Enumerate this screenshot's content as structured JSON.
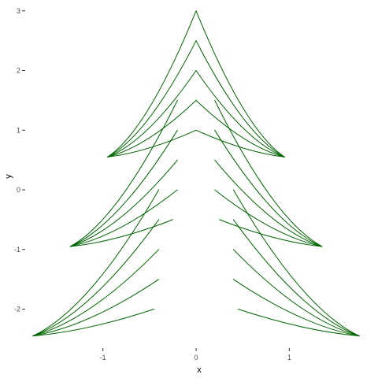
{
  "chart_data": {
    "type": "line",
    "title": "",
    "xlabel": "x",
    "ylabel": "y",
    "xlim": [
      -1.85,
      1.85
    ],
    "ylim": [
      -2.6,
      3.05
    ],
    "xticks": [
      -1,
      0,
      1
    ],
    "yticks": [
      -2,
      -1,
      0,
      1,
      2,
      3
    ],
    "grid": false,
    "legend": "none",
    "line_color": "#006400",
    "background": "#ffffff",
    "series": [
      {
        "points": [
          [
            -0.95,
            0.55
          ],
          [
            0,
            3.0
          ]
        ]
      },
      {
        "points": [
          [
            0.95,
            0.55
          ],
          [
            0,
            3.0
          ]
        ]
      },
      {
        "points": [
          [
            -0.95,
            0.55
          ],
          [
            0,
            2.5
          ]
        ]
      },
      {
        "points": [
          [
            0.95,
            0.55
          ],
          [
            0,
            2.5
          ]
        ]
      },
      {
        "points": [
          [
            -0.95,
            0.55
          ],
          [
            0,
            2.0
          ]
        ]
      },
      {
        "points": [
          [
            0.95,
            0.55
          ],
          [
            0,
            2.0
          ]
        ]
      },
      {
        "points": [
          [
            -0.95,
            0.55
          ],
          [
            0,
            1.5
          ]
        ]
      },
      {
        "points": [
          [
            0.95,
            0.55
          ],
          [
            0,
            1.5
          ]
        ]
      },
      {
        "points": [
          [
            -0.95,
            0.55
          ],
          [
            0,
            1.0
          ]
        ]
      },
      {
        "points": [
          [
            0.95,
            0.55
          ],
          [
            0,
            1.0
          ]
        ]
      },
      {
        "points": [
          [
            -1.35,
            -0.95
          ],
          [
            -0.2,
            1.5
          ]
        ]
      },
      {
        "points": [
          [
            1.35,
            -0.95
          ],
          [
            0.2,
            1.5
          ]
        ]
      },
      {
        "points": [
          [
            -1.35,
            -0.95
          ],
          [
            -0.2,
            1.0
          ]
        ]
      },
      {
        "points": [
          [
            1.35,
            -0.95
          ],
          [
            0.2,
            1.0
          ]
        ]
      },
      {
        "points": [
          [
            -1.35,
            -0.95
          ],
          [
            -0.2,
            0.5
          ]
        ]
      },
      {
        "points": [
          [
            1.35,
            -0.95
          ],
          [
            0.2,
            0.5
          ]
        ]
      },
      {
        "points": [
          [
            -1.35,
            -0.95
          ],
          [
            -0.2,
            0.0
          ]
        ]
      },
      {
        "points": [
          [
            1.35,
            -0.95
          ],
          [
            0.2,
            0.0
          ]
        ]
      },
      {
        "points": [
          [
            -1.35,
            -0.95
          ],
          [
            -0.25,
            -0.5
          ]
        ]
      },
      {
        "points": [
          [
            1.35,
            -0.95
          ],
          [
            0.25,
            -0.5
          ]
        ]
      },
      {
        "points": [
          [
            -1.75,
            -2.45
          ],
          [
            -0.4,
            0.0
          ]
        ]
      },
      {
        "points": [
          [
            1.75,
            -2.45
          ],
          [
            0.4,
            0.0
          ]
        ]
      },
      {
        "points": [
          [
            -1.75,
            -2.45
          ],
          [
            -0.4,
            -0.5
          ]
        ]
      },
      {
        "points": [
          [
            1.75,
            -2.45
          ],
          [
            0.4,
            -0.5
          ]
        ]
      },
      {
        "points": [
          [
            -1.75,
            -2.45
          ],
          [
            -0.4,
            -1.0
          ]
        ]
      },
      {
        "points": [
          [
            1.75,
            -2.45
          ],
          [
            0.4,
            -1.0
          ]
        ]
      },
      {
        "points": [
          [
            -1.75,
            -2.45
          ],
          [
            -0.4,
            -1.5
          ]
        ]
      },
      {
        "points": [
          [
            1.75,
            -2.45
          ],
          [
            0.4,
            -1.5
          ]
        ]
      },
      {
        "points": [
          [
            -1.75,
            -2.45
          ],
          [
            -0.45,
            -2.0
          ]
        ]
      },
      {
        "points": [
          [
            1.75,
            -2.45
          ],
          [
            0.45,
            -2.0
          ]
        ]
      }
    ]
  }
}
